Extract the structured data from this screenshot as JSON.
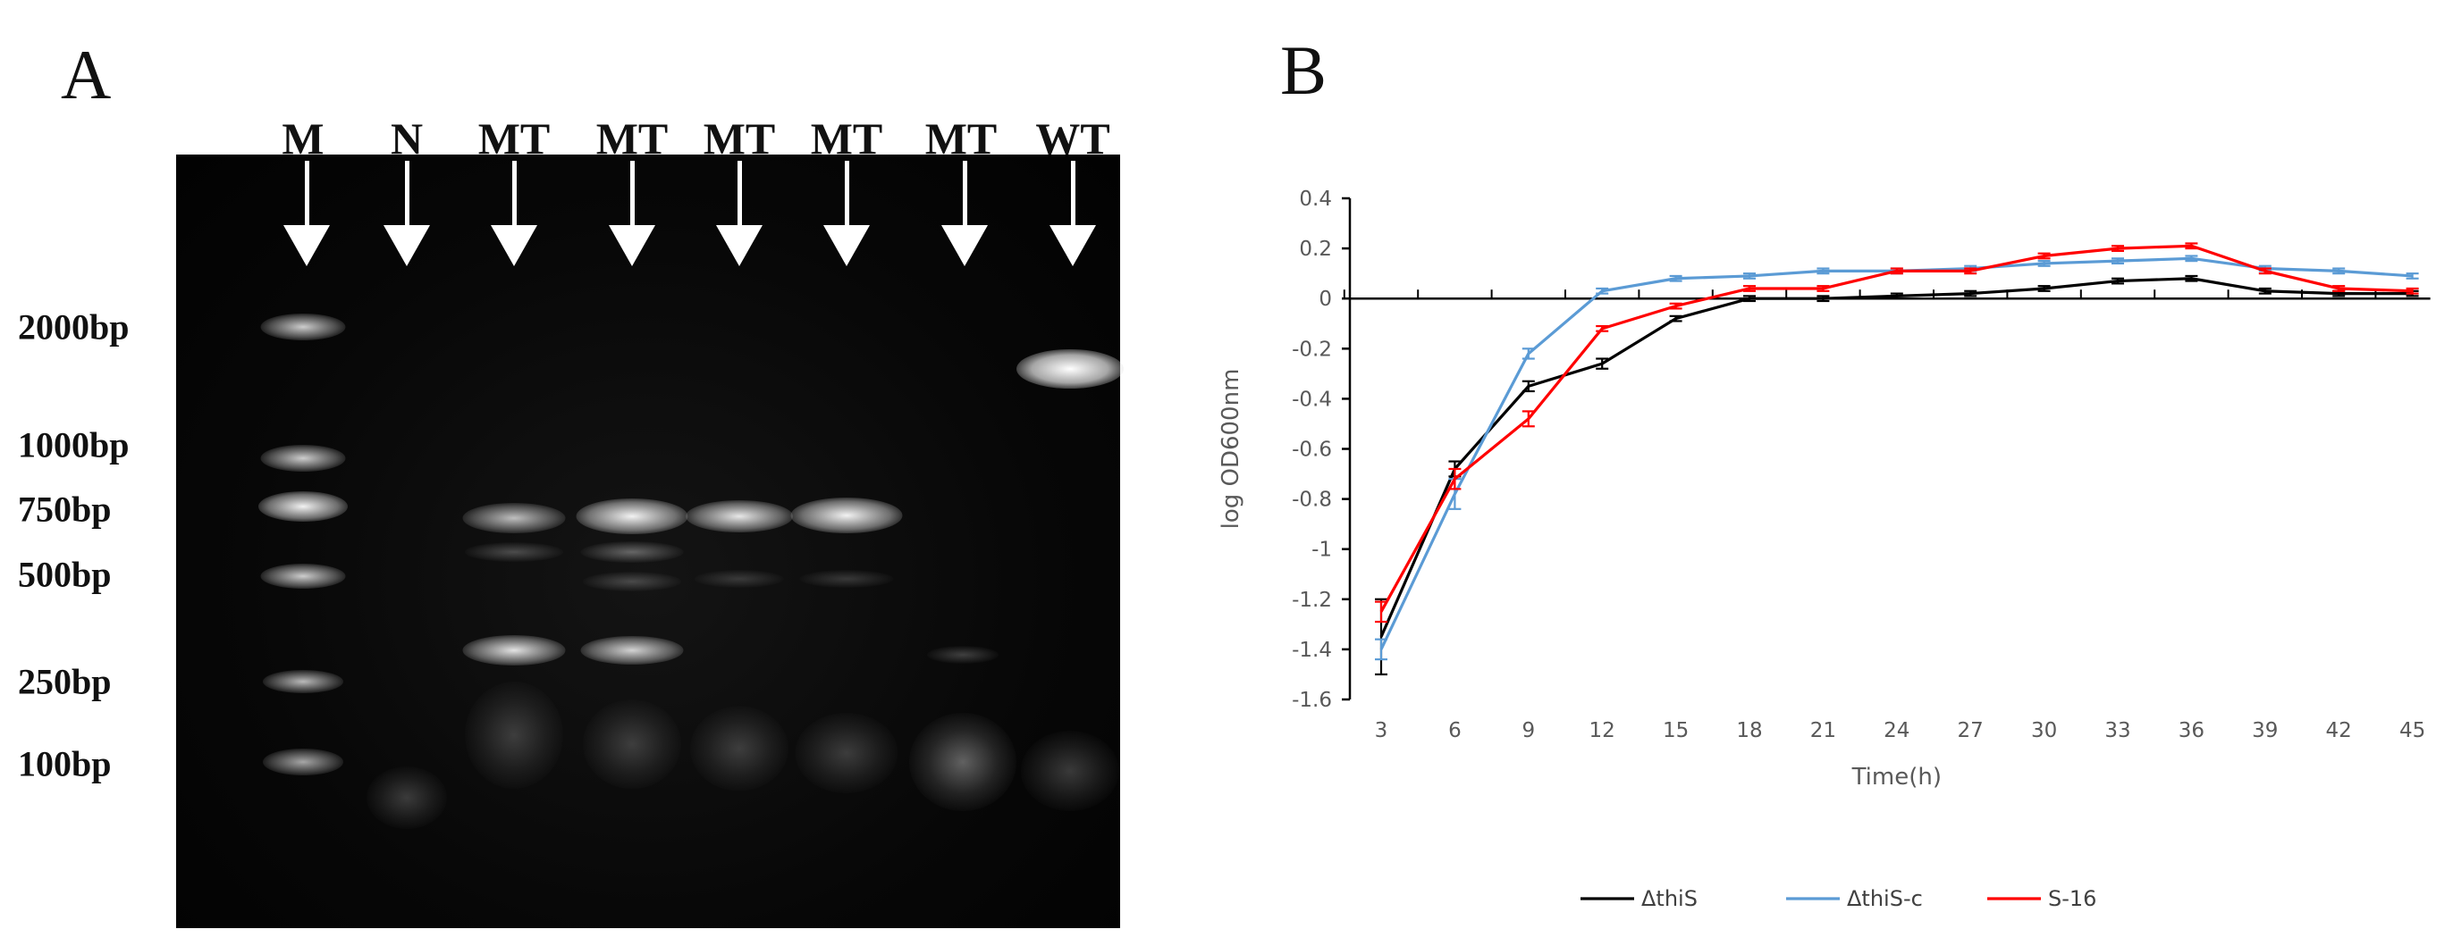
{
  "panels": {
    "a_label": "A",
    "b_label": "B"
  },
  "gel": {
    "lanes": [
      {
        "label": "M"
      },
      {
        "label": "N"
      },
      {
        "label": "MT"
      },
      {
        "label": "MT"
      },
      {
        "label": "MT"
      },
      {
        "label": "MT"
      },
      {
        "label": "MT"
      },
      {
        "label": "WT"
      }
    ],
    "marker_sizes": [
      "2000bp",
      "1000bp",
      "750bp",
      "500bp",
      "250bp",
      "100bp"
    ],
    "background_color": "#050505",
    "band_color": "#e8e8e8"
  },
  "chart_data": {
    "type": "line",
    "title": "",
    "xlabel": "Time(h)",
    "ylabel": "log OD600nm",
    "x": [
      3,
      6,
      9,
      12,
      15,
      18,
      21,
      24,
      27,
      30,
      33,
      36,
      39,
      42,
      45
    ],
    "xticks": [
      "3",
      "6",
      "9",
      "12",
      "15",
      "18",
      "21",
      "24",
      "27",
      "30",
      "33",
      "36",
      "39",
      "42",
      "45"
    ],
    "ylim": [
      -1.6,
      0.4
    ],
    "yticks": [
      "0.4",
      "0.2",
      "0",
      "-0.2",
      "-0.4",
      "-0.6",
      "-0.8",
      "-1",
      "-1.2",
      "-1.4",
      "-1.6"
    ],
    "grid": false,
    "legend_position": "bottom",
    "series": [
      {
        "name": "ΔthiS",
        "color": "#000000",
        "values": [
          -1.35,
          -0.68,
          -0.35,
          -0.26,
          -0.08,
          0.0,
          0.0,
          0.01,
          0.02,
          0.04,
          0.07,
          0.08,
          0.03,
          0.02,
          0.02
        ],
        "errors": [
          0.15,
          0.03,
          0.02,
          0.02,
          0.01,
          0.01,
          0.01,
          0.01,
          0.01,
          0.01,
          0.01,
          0.01,
          0.01,
          0.01,
          0.01
        ]
      },
      {
        "name": "ΔthiS-c",
        "color": "#5b9bd5",
        "values": [
          -1.4,
          -0.78,
          -0.22,
          0.03,
          0.08,
          0.09,
          0.11,
          0.11,
          0.12,
          0.14,
          0.15,
          0.16,
          0.12,
          0.11,
          0.09
        ],
        "errors": [
          0.04,
          0.06,
          0.02,
          0.01,
          0.01,
          0.01,
          0.01,
          0.01,
          0.01,
          0.01,
          0.01,
          0.01,
          0.01,
          0.01,
          0.01
        ]
      },
      {
        "name": "S-16",
        "color": "#ff0000",
        "values": [
          -1.25,
          -0.72,
          -0.48,
          -0.12,
          -0.03,
          0.04,
          0.04,
          0.11,
          0.11,
          0.17,
          0.2,
          0.21,
          0.11,
          0.04,
          0.03
        ],
        "errors": [
          0.04,
          0.04,
          0.03,
          0.01,
          0.01,
          0.01,
          0.01,
          0.01,
          0.01,
          0.01,
          0.01,
          0.01,
          0.01,
          0.01,
          0.01
        ]
      }
    ]
  }
}
